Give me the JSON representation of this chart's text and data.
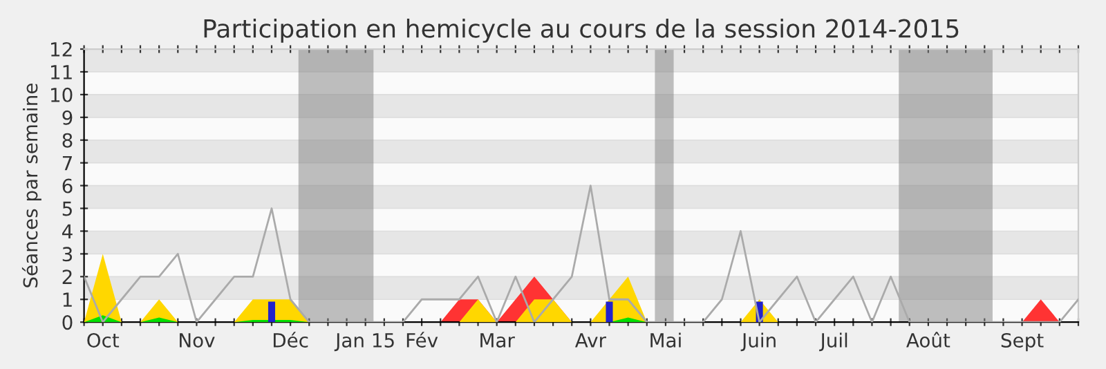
{
  "chart_data": {
    "type": "area",
    "title": "Participation en hemicycle au cours de la session 2014-2015",
    "ylabel": "Séances par semaine",
    "x": [
      "2014-09-29",
      "2014-10-06",
      "2014-10-13",
      "2014-10-20",
      "2014-10-27",
      "2014-11-03",
      "2014-11-10",
      "2014-11-17",
      "2014-11-24",
      "2014-12-01",
      "2014-12-08",
      "2014-12-15",
      "2014-12-22",
      "2014-12-29",
      "2015-01-05",
      "2015-01-12",
      "2015-01-19",
      "2015-01-26",
      "2015-02-02",
      "2015-02-09",
      "2015-02-16",
      "2015-02-23",
      "2015-03-02",
      "2015-03-09",
      "2015-03-16",
      "2015-03-23",
      "2015-03-30",
      "2015-04-06",
      "2015-04-13",
      "2015-04-20",
      "2015-04-27",
      "2015-05-04",
      "2015-05-11",
      "2015-05-18",
      "2015-05-25",
      "2015-06-01",
      "2015-06-08",
      "2015-06-15",
      "2015-06-22",
      "2015-06-29",
      "2015-07-06",
      "2015-07-13",
      "2015-07-20",
      "2015-07-27",
      "2015-08-03",
      "2015-08-10",
      "2015-08-17",
      "2015-08-24",
      "2015-08-31",
      "2015-09-07",
      "2015-09-14",
      "2015-09-21",
      "2015-09-28",
      "2015-10-05"
    ],
    "xlim": [
      "2014-09-29",
      "2015-10-05"
    ],
    "ylim": [
      0,
      12
    ],
    "xticks": [
      {
        "value": "2014-09-29",
        "label": null
      },
      {
        "value": "2014-10-06",
        "label": "Oct"
      },
      {
        "value": "2014-10-13",
        "label": null
      },
      {
        "value": "2014-10-20",
        "label": null
      },
      {
        "value": "2014-10-27",
        "label": null
      },
      {
        "value": "2014-11-03",
        "label": null
      },
      {
        "value": "2014-11-10",
        "label": "Nov"
      },
      {
        "value": "2014-11-17",
        "label": null
      },
      {
        "value": "2014-11-24",
        "label": null
      },
      {
        "value": "2014-12-01",
        "label": null
      },
      {
        "value": "2014-12-08",
        "label": null
      },
      {
        "value": "2014-12-15",
        "label": "Déc"
      },
      {
        "value": "2014-12-22",
        "label": null
      },
      {
        "value": "2014-12-29",
        "label": null
      },
      {
        "value": "2015-01-05",
        "label": null
      },
      {
        "value": "2015-01-12",
        "label": "Jan 15"
      },
      {
        "value": "2015-01-19",
        "label": null
      },
      {
        "value": "2015-01-26",
        "label": null
      },
      {
        "value": "2015-02-02",
        "label": "Fév"
      },
      {
        "value": "2015-02-09",
        "label": null
      },
      {
        "value": "2015-02-16",
        "label": null
      },
      {
        "value": "2015-02-23",
        "label": null
      },
      {
        "value": "2015-03-02",
        "label": "Mar"
      },
      {
        "value": "2015-03-09",
        "label": null
      },
      {
        "value": "2015-03-16",
        "label": null
      },
      {
        "value": "2015-03-23",
        "label": null
      },
      {
        "value": "2015-03-30",
        "label": null
      },
      {
        "value": "2015-04-06",
        "label": "Avr"
      },
      {
        "value": "2015-04-13",
        "label": null
      },
      {
        "value": "2015-04-20",
        "label": null
      },
      {
        "value": "2015-04-27",
        "label": null
      },
      {
        "value": "2015-05-04",
        "label": "Mai"
      },
      {
        "value": "2015-05-11",
        "label": null
      },
      {
        "value": "2015-05-18",
        "label": null
      },
      {
        "value": "2015-05-25",
        "label": null
      },
      {
        "value": "2015-06-01",
        "label": null
      },
      {
        "value": "2015-06-08",
        "label": "Juin"
      },
      {
        "value": "2015-06-15",
        "label": null
      },
      {
        "value": "2015-06-22",
        "label": null
      },
      {
        "value": "2015-06-29",
        "label": null
      },
      {
        "value": "2015-07-06",
        "label": "Juil"
      },
      {
        "value": "2015-07-13",
        "label": null
      },
      {
        "value": "2015-07-20",
        "label": null
      },
      {
        "value": "2015-07-27",
        "label": null
      },
      {
        "value": "2015-08-03",
        "label": null
      },
      {
        "value": "2015-08-10",
        "label": "Août"
      },
      {
        "value": "2015-08-17",
        "label": null
      },
      {
        "value": "2015-08-24",
        "label": null
      },
      {
        "value": "2015-08-31",
        "label": null
      },
      {
        "value": "2015-09-07",
        "label": null
      },
      {
        "value": "2015-09-14",
        "label": "Sept"
      },
      {
        "value": "2015-09-21",
        "label": null
      },
      {
        "value": "2015-09-28",
        "label": null
      },
      {
        "value": "2015-10-05",
        "label": null
      }
    ],
    "yticks": [
      0,
      1,
      2,
      3,
      4,
      5,
      6,
      7,
      8,
      9,
      10,
      11,
      12
    ],
    "grid": "y",
    "bands": [
      {
        "axis": "x",
        "from": "2014-12-18",
        "to": "2015-01-15",
        "color": "#808080"
      },
      {
        "axis": "x",
        "from": "2015-04-30",
        "to": "2015-05-07",
        "color": "#808080"
      },
      {
        "axis": "x",
        "from": "2015-07-30",
        "to": "2015-09-03",
        "color": "#808080"
      }
    ],
    "series": [
      {
        "color": "#ff3333",
        "values": [
          null,
          null,
          null,
          null,
          null,
          null,
          null,
          null,
          null,
          null,
          null,
          null,
          null,
          null,
          null,
          null,
          null,
          null,
          null,
          0,
          1,
          1,
          0,
          1,
          2,
          1,
          0,
          null,
          null,
          null,
          null,
          null,
          null,
          null,
          null,
          null,
          null,
          null,
          null,
          null,
          null,
          null,
          null,
          null,
          null,
          null,
          null,
          null,
          null,
          null,
          0,
          1,
          0,
          null
        ]
      },
      {
        "color": "#ffd700",
        "values": [
          0,
          3,
          0,
          0,
          1,
          0,
          0,
          0,
          0,
          1,
          1,
          1,
          0,
          0,
          0,
          0,
          0,
          0,
          0,
          0,
          0,
          1,
          0,
          0,
          1,
          1,
          0,
          0,
          1,
          2,
          0,
          0,
          0,
          0,
          0,
          0,
          1,
          0,
          0,
          0,
          0,
          0,
          0,
          0,
          0,
          0,
          0,
          0,
          0,
          0,
          0,
          0,
          0,
          0
        ]
      },
      {
        "color": "#00e000",
        "values": [
          0,
          0.3,
          0,
          0,
          0.2,
          0,
          0,
          0,
          0,
          0.1,
          0.1,
          0.1,
          0,
          0,
          0,
          0,
          0,
          0,
          0,
          0,
          0,
          0,
          0,
          0,
          0,
          0,
          0,
          0,
          0,
          0.2,
          0,
          0,
          0,
          0,
          0,
          0,
          0,
          0,
          0,
          0,
          0,
          0,
          0,
          0,
          0,
          0,
          0,
          0,
          0,
          0,
          0,
          0,
          0,
          0
        ]
      },
      {
        "type": "bar",
        "color": "#2222cc",
        "x": [
          "2014-12-08",
          "2015-04-13",
          "2015-06-08"
        ],
        "values": [
          0.9,
          0.9,
          0.9
        ]
      },
      {
        "type": "line",
        "color": "#aaaaaa",
        "values": [
          2,
          0,
          1,
          2,
          2,
          3,
          0,
          1,
          2,
          2,
          5,
          1,
          0,
          0,
          0,
          0,
          0,
          0,
          1,
          1,
          1,
          2,
          0,
          2,
          0,
          1,
          2,
          6,
          1,
          1,
          0,
          0,
          0,
          0,
          1,
          4,
          0,
          1,
          2,
          0,
          1,
          2,
          0,
          2,
          0,
          0,
          0,
          0,
          0,
          0,
          0,
          0,
          0,
          1
        ]
      }
    ]
  }
}
